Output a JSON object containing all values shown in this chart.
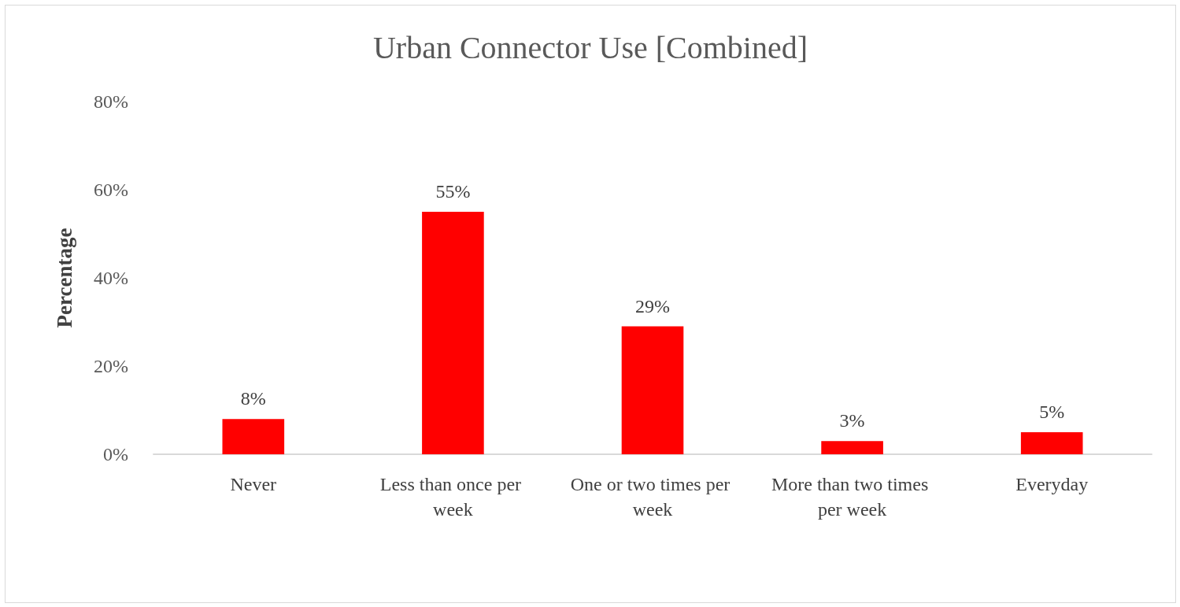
{
  "chart_data": {
    "type": "bar",
    "title": "Urban Connector Use [Combined]",
    "ylabel": "Percentage",
    "categories": [
      "Never",
      "Less than once per week",
      "One or two times per week",
      "More than two times per week",
      "Everyday"
    ],
    "values": [
      8,
      55,
      29,
      3,
      5
    ],
    "color": "#ff0000",
    "value_labels": [
      "8%",
      "55%",
      "29%",
      "3%",
      "5%"
    ],
    "ylim": [
      0,
      80
    ],
    "yticks": [
      {
        "value": 0,
        "label": "0%"
      },
      {
        "value": 20,
        "label": "20%"
      },
      {
        "value": 40,
        "label": "40%"
      },
      {
        "value": 60,
        "label": "60%"
      },
      {
        "value": 80,
        "label": "80%"
      }
    ],
    "grid": false
  }
}
